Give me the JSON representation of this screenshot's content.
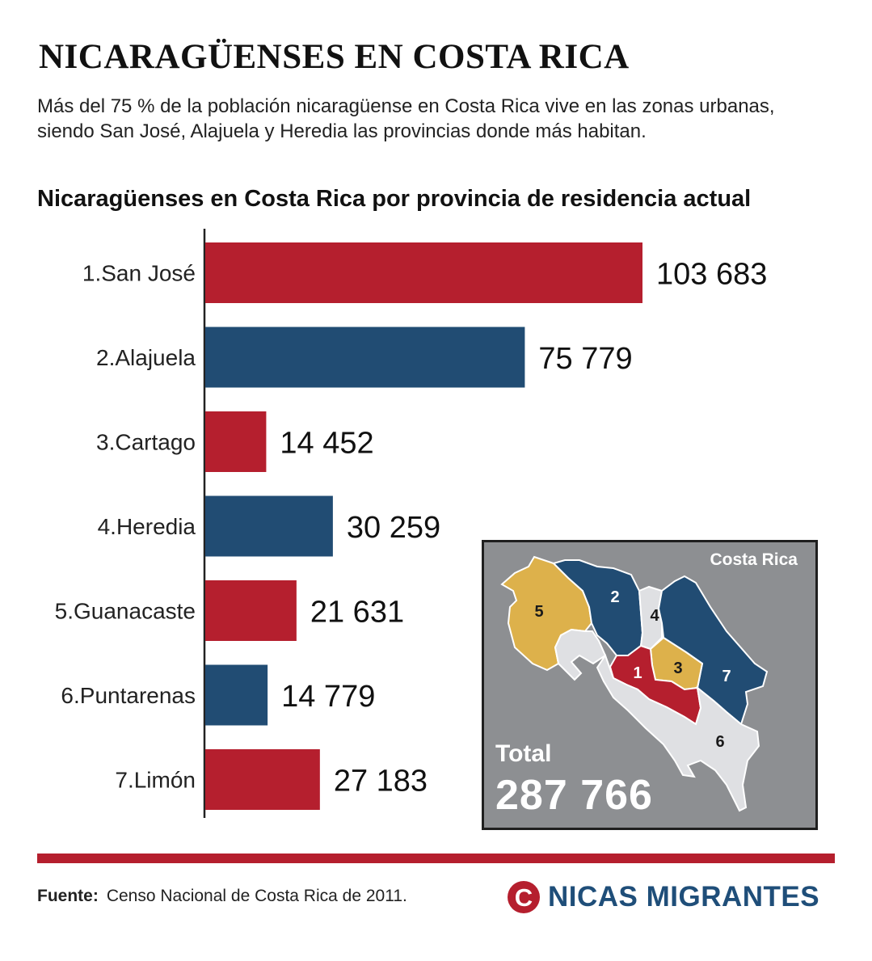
{
  "header": {
    "title": "NICARAGÜENSES EN COSTA RICA",
    "subtitle": "Más del 75 % de la población nicaragüense en Costa Rica vive en las zonas urbanas, siendo San José, Alajuela y Heredia las provincias donde más habitan."
  },
  "chart_data": {
    "type": "bar",
    "orientation": "horizontal",
    "title": "Nicaragüenses en Costa Rica por provincia de residencia actual",
    "categories": [
      "1.San José",
      "2.Alajuela",
      "3.Cartago",
      "4.Heredia",
      "5.Guanacaste",
      "6.Puntarenas",
      "7.Limón"
    ],
    "values": [
      103683,
      75779,
      14452,
      30259,
      21631,
      14779,
      27183
    ],
    "value_labels": [
      "103 683",
      "75 779",
      "14 452",
      "30 259",
      "21 631",
      "14 779",
      "27 183"
    ],
    "bar_colors": [
      "#b51f2e",
      "#214c73",
      "#b51f2e",
      "#214c73",
      "#b51f2e",
      "#214c73",
      "#b51f2e"
    ],
    "xlim": [
      0,
      103683
    ],
    "grid": false,
    "legend": false
  },
  "map": {
    "label": "Costa Rica",
    "total_label": "Total",
    "total_value": "287 766",
    "region_numbers": [
      "1",
      "2",
      "3",
      "4",
      "5",
      "6",
      "7"
    ],
    "colors": {
      "background": "#8d8f92",
      "red": "#b51f2e",
      "blue": "#214c73",
      "yellow": "#ddb14b",
      "gray": "#dfe0e3"
    }
  },
  "footer": {
    "source_label": "Fuente:",
    "source_text": "Censo Nacional de Costa Rica de 2011.",
    "brand_mark": "C",
    "brand_name": "NICAS MIGRANTES"
  },
  "colors": {
    "accent_red": "#b51f2e",
    "accent_blue": "#214c73"
  }
}
